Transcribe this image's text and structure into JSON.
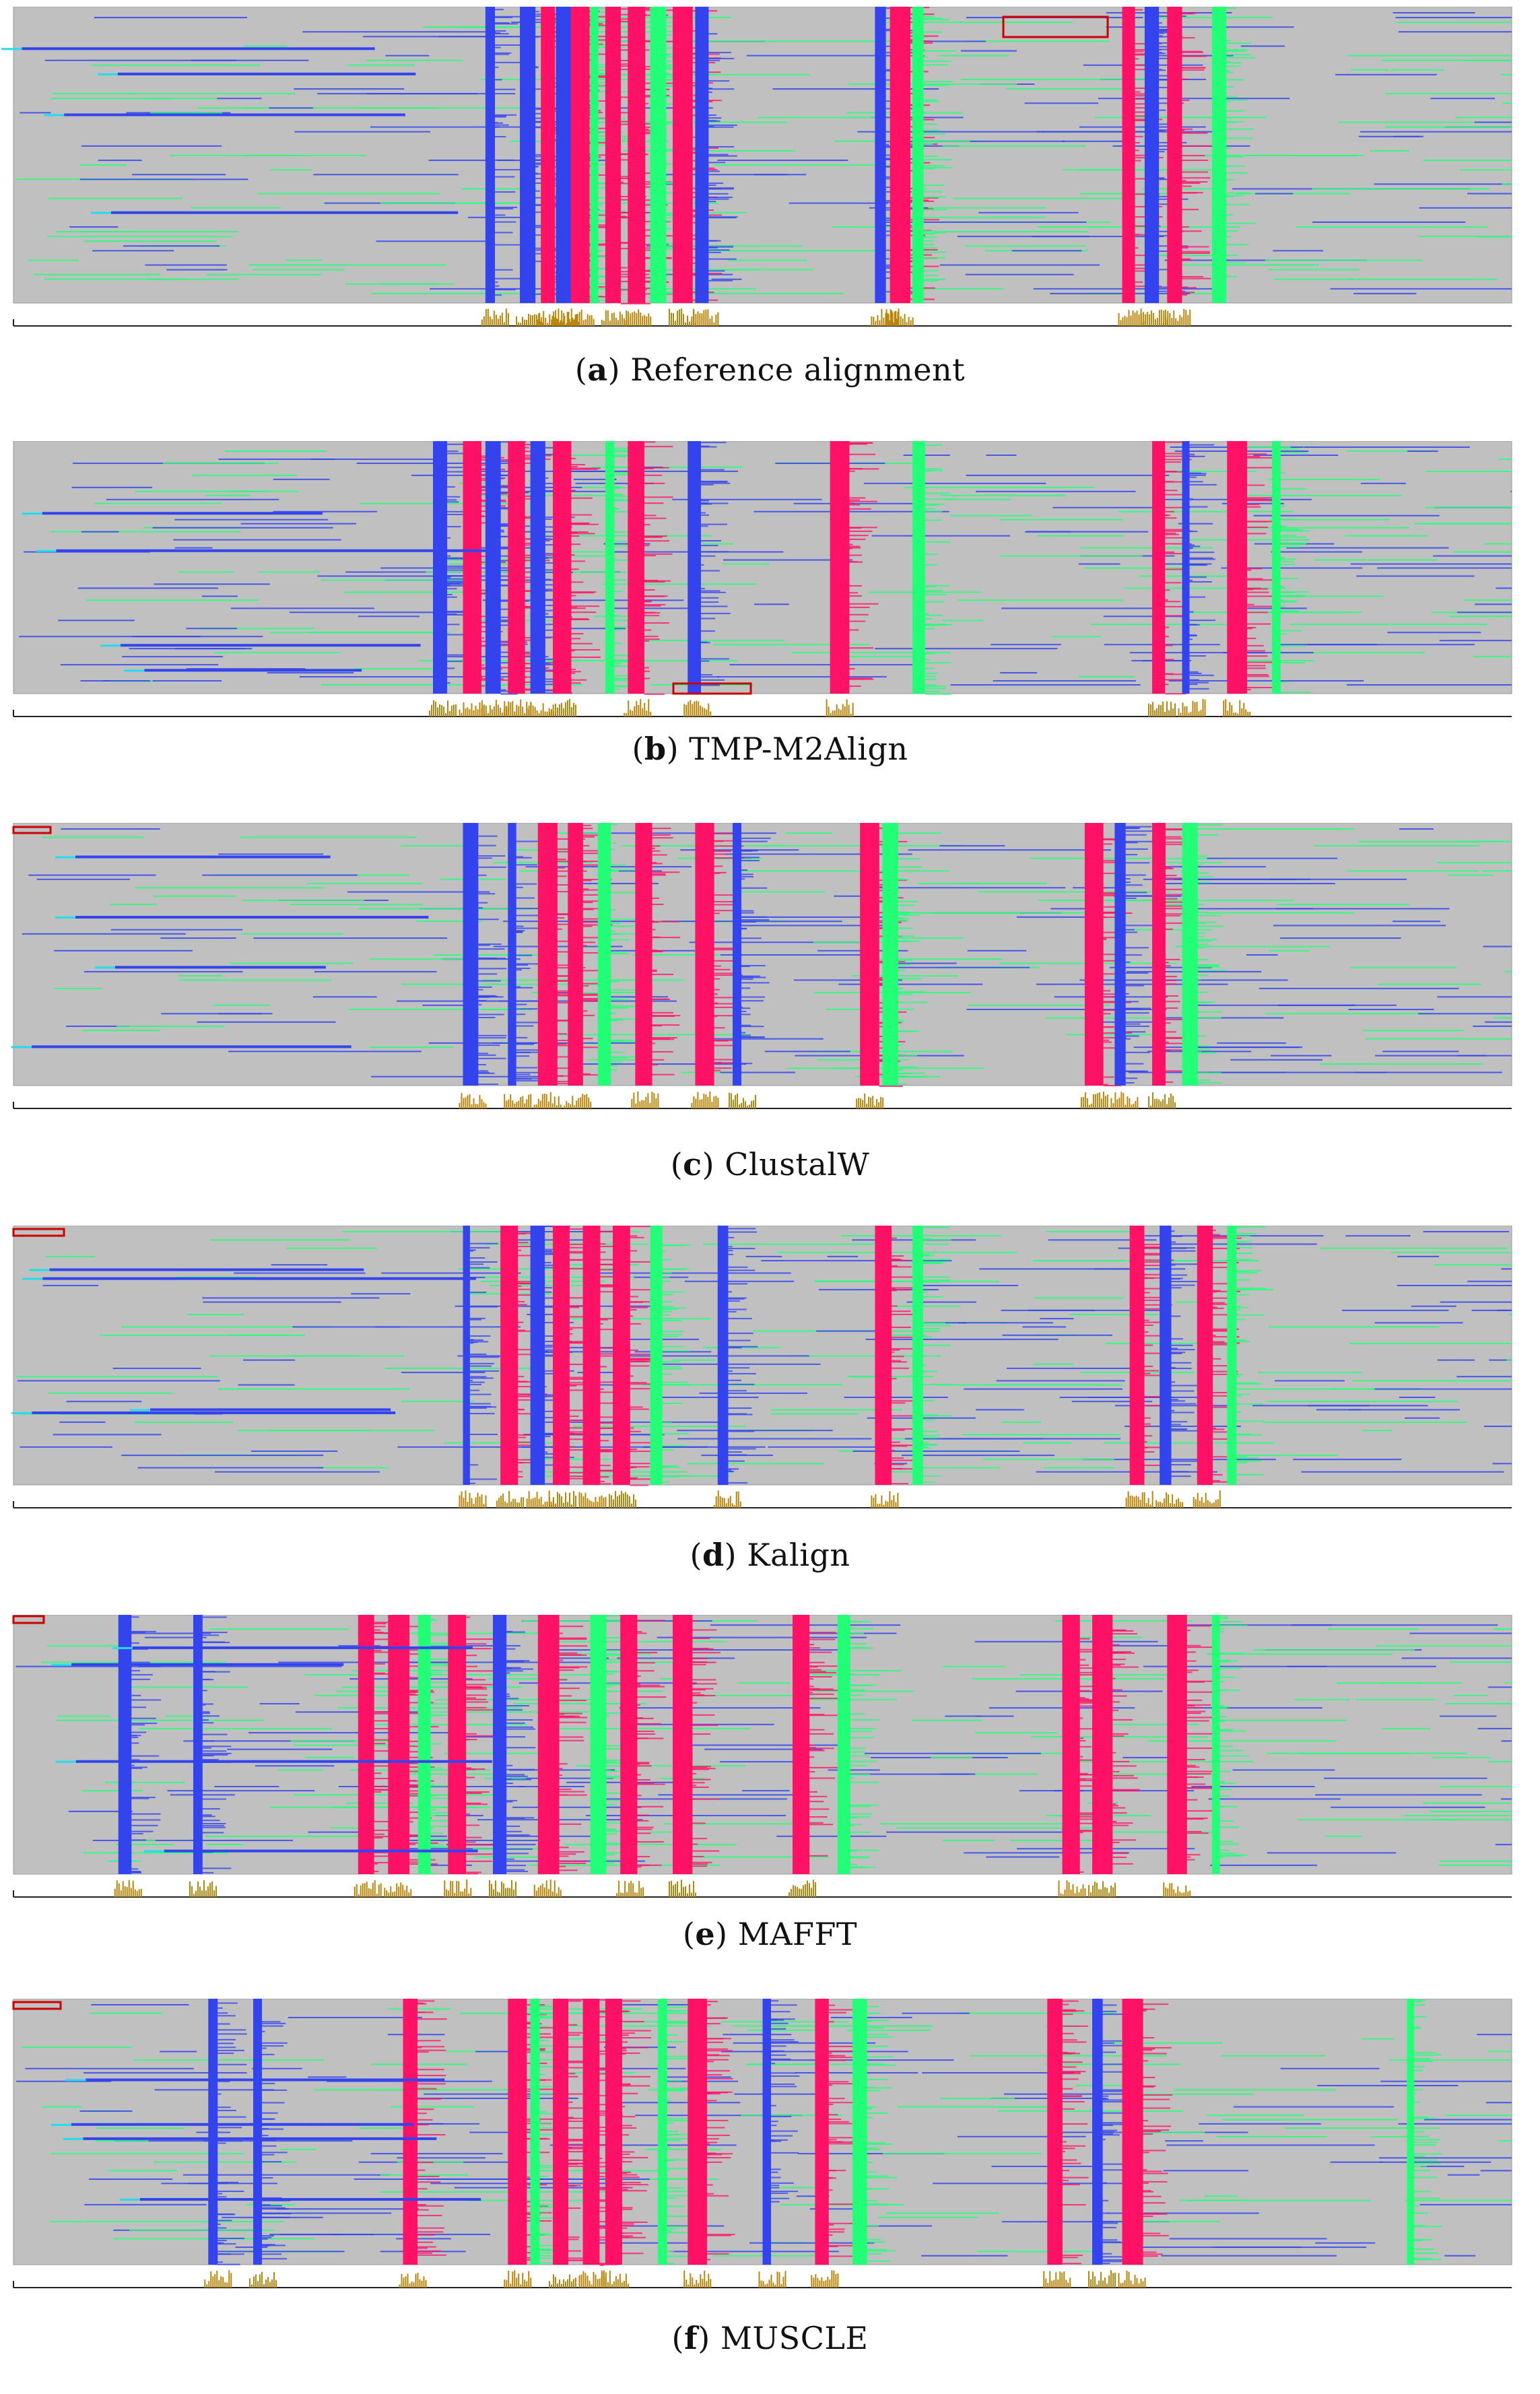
{
  "panels": [
    {
      "letter": "a",
      "label": "Reference alignment",
      "bands": [
        {
          "c": "blue",
          "s": 0.315,
          "e": 0.31
        },
        {
          "c": "blue",
          "s": 0.338,
          "e": 0.33
        },
        {
          "c": "pink",
          "s": 0.352,
          "e": 0.35
        },
        {
          "c": "blue",
          "s": 0.362,
          "e": 0.36
        },
        {
          "c": "pink",
          "s": 0.372,
          "e": 0.37
        },
        {
          "c": "green",
          "s": 0.385,
          "e": 0.38
        },
        {
          "c": "pink",
          "s": 0.395,
          "e": 0.39
        },
        {
          "c": "pink",
          "s": 0.41,
          "e": 0.41
        },
        {
          "c": "green",
          "s": 0.425,
          "e": 0.42
        },
        {
          "c": "pink",
          "s": 0.44,
          "e": 0.44
        },
        {
          "c": "blue",
          "s": 0.455,
          "e": 0.45
        },
        {
          "c": "blue",
          "s": 0.575,
          "e": 0.57
        },
        {
          "c": "pink",
          "s": 0.585,
          "e": 0.585
        },
        {
          "c": "green",
          "s": 0.6,
          "e": 0.6
        },
        {
          "c": "pink",
          "s": 0.74,
          "e": 0.74
        },
        {
          "c": "blue",
          "s": 0.755,
          "e": 0.75
        },
        {
          "c": "pink",
          "s": 0.77,
          "e": 0.77
        },
        {
          "c": "green",
          "s": 0.8,
          "e": 0.8
        }
      ]
    },
    {
      "letter": "b",
      "label": "TMP-M2Align",
      "bands": [
        {
          "c": "blue",
          "s": 0.28,
          "e": 0.28
        },
        {
          "c": "pink",
          "s": 0.3,
          "e": 0.3
        },
        {
          "c": "blue",
          "s": 0.315,
          "e": 0.31
        },
        {
          "c": "pink",
          "s": 0.33,
          "e": 0.33
        },
        {
          "c": "blue",
          "s": 0.345,
          "e": 0.34
        },
        {
          "c": "pink",
          "s": 0.36,
          "e": 0.36
        },
        {
          "c": "green",
          "s": 0.395,
          "e": 0.39
        },
        {
          "c": "pink",
          "s": 0.41,
          "e": 0.41
        },
        {
          "c": "blue",
          "s": 0.45,
          "e": 0.45
        },
        {
          "c": "pink",
          "s": 0.545,
          "e": 0.54
        },
        {
          "c": "green",
          "s": 0.6,
          "e": 0.6
        },
        {
          "c": "pink",
          "s": 0.76,
          "e": 0.76
        },
        {
          "c": "blue",
          "s": 0.78,
          "e": 0.78
        },
        {
          "c": "pink",
          "s": 0.81,
          "e": 0.81
        },
        {
          "c": "green",
          "s": 0.84,
          "e": 0.84
        }
      ]
    },
    {
      "letter": "c",
      "label": "ClustalW",
      "bands": [
        {
          "c": "blue",
          "s": 0.3,
          "e": 0.3
        },
        {
          "c": "blue",
          "s": 0.33,
          "e": 0.33
        },
        {
          "c": "pink",
          "s": 0.35,
          "e": 0.35
        },
        {
          "c": "pink",
          "s": 0.37,
          "e": 0.37
        },
        {
          "c": "green",
          "s": 0.39,
          "e": 0.39
        },
        {
          "c": "pink",
          "s": 0.415,
          "e": 0.41
        },
        {
          "c": "pink",
          "s": 0.455,
          "e": 0.45
        },
        {
          "c": "blue",
          "s": 0.48,
          "e": 0.48
        },
        {
          "c": "pink",
          "s": 0.565,
          "e": 0.565
        },
        {
          "c": "green",
          "s": 0.58,
          "e": 0.58
        },
        {
          "c": "pink",
          "s": 0.715,
          "e": 0.715
        },
        {
          "c": "blue",
          "s": 0.735,
          "e": 0.73
        },
        {
          "c": "pink",
          "s": 0.76,
          "e": 0.76
        },
        {
          "c": "green",
          "s": 0.78,
          "e": 0.78
        }
      ]
    },
    {
      "letter": "d",
      "label": "Kalign",
      "bands": [
        {
          "c": "blue",
          "s": 0.3,
          "e": 0.3
        },
        {
          "c": "pink",
          "s": 0.325,
          "e": 0.32
        },
        {
          "c": "blue",
          "s": 0.345,
          "e": 0.34
        },
        {
          "c": "pink",
          "s": 0.36,
          "e": 0.36
        },
        {
          "c": "pink",
          "s": 0.38,
          "e": 0.38
        },
        {
          "c": "pink",
          "s": 0.4,
          "e": 0.4
        },
        {
          "c": "green",
          "s": 0.425,
          "e": 0.42
        },
        {
          "c": "blue",
          "s": 0.47,
          "e": 0.47
        },
        {
          "c": "pink",
          "s": 0.575,
          "e": 0.575
        },
        {
          "c": "green",
          "s": 0.6,
          "e": 0.6
        },
        {
          "c": "pink",
          "s": 0.745,
          "e": 0.74
        },
        {
          "c": "blue",
          "s": 0.765,
          "e": 0.76
        },
        {
          "c": "pink",
          "s": 0.79,
          "e": 0.79
        },
        {
          "c": "green",
          "s": 0.81,
          "e": 0.81
        }
      ]
    },
    {
      "letter": "e",
      "label": "MAFFT",
      "bands": [
        {
          "c": "blue",
          "s": 0.07,
          "e": 0.07
        },
        {
          "c": "blue",
          "s": 0.12,
          "e": 0.12
        },
        {
          "c": "pink",
          "s": 0.23,
          "e": 0.23
        },
        {
          "c": "pink",
          "s": 0.25,
          "e": 0.25
        },
        {
          "c": "green",
          "s": 0.27,
          "e": 0.27
        },
        {
          "c": "pink",
          "s": 0.29,
          "e": 0.29
        },
        {
          "c": "blue",
          "s": 0.32,
          "e": 0.32
        },
        {
          "c": "pink",
          "s": 0.35,
          "e": 0.35
        },
        {
          "c": "green",
          "s": 0.385,
          "e": 0.385
        },
        {
          "c": "pink",
          "s": 0.405,
          "e": 0.405
        },
        {
          "c": "pink",
          "s": 0.44,
          "e": 0.44
        },
        {
          "c": "pink",
          "s": 0.52,
          "e": 0.52
        },
        {
          "c": "green",
          "s": 0.55,
          "e": 0.55
        },
        {
          "c": "pink",
          "s": 0.7,
          "e": 0.7
        },
        {
          "c": "pink",
          "s": 0.72,
          "e": 0.72
        },
        {
          "c": "pink",
          "s": 0.77,
          "e": 0.77
        },
        {
          "c": "green",
          "s": 0.8,
          "e": 0.8
        }
      ]
    },
    {
      "letter": "f",
      "label": "MUSCLE",
      "bands": [
        {
          "c": "blue",
          "s": 0.13,
          "e": 0.13
        },
        {
          "c": "blue",
          "s": 0.16,
          "e": 0.16
        },
        {
          "c": "pink",
          "s": 0.26,
          "e": 0.26
        },
        {
          "c": "pink",
          "s": 0.33,
          "e": 0.33
        },
        {
          "c": "green",
          "s": 0.345,
          "e": 0.345
        },
        {
          "c": "pink",
          "s": 0.36,
          "e": 0.36
        },
        {
          "c": "pink",
          "s": 0.38,
          "e": 0.38
        },
        {
          "c": "pink",
          "s": 0.395,
          "e": 0.395
        },
        {
          "c": "green",
          "s": 0.43,
          "e": 0.43
        },
        {
          "c": "pink",
          "s": 0.45,
          "e": 0.45
        },
        {
          "c": "blue",
          "s": 0.5,
          "e": 0.5
        },
        {
          "c": "pink",
          "s": 0.535,
          "e": 0.535
        },
        {
          "c": "green",
          "s": 0.56,
          "e": 0.56
        },
        {
          "c": "pink",
          "s": 0.69,
          "e": 0.69
        },
        {
          "c": "blue",
          "s": 0.72,
          "e": 0.72
        },
        {
          "c": "pink",
          "s": 0.74,
          "e": 0.74
        },
        {
          "c": "green",
          "s": 0.93,
          "e": 0.93
        }
      ]
    }
  ],
  "colors": {
    "background": "#c0c0c0",
    "blue": "#3344ee",
    "pink": "#ff1166",
    "green": "#22ff77",
    "cyan": "#22ddee",
    "bar": "#b8860b",
    "frame": "#999999",
    "box": "#cc0000"
  }
}
